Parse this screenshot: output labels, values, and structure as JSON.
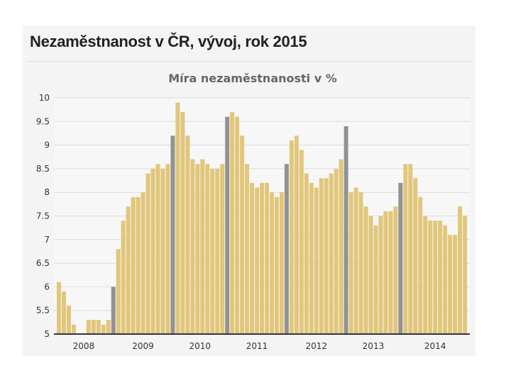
{
  "header": {
    "title": "Nezaměstnanost v ČR, vývoj, rok 2015"
  },
  "colors": {
    "bar": "#e1c67b",
    "highlight": "#929292",
    "grid": "#dadada"
  },
  "chart_data": {
    "type": "bar",
    "title": "Míra nezaměstnanosti v %",
    "xlabel": "",
    "ylabel": "",
    "ylim": [
      5,
      10
    ],
    "y_ticks": [
      "5",
      "5.5",
      "6",
      "6.5",
      "7",
      "7.5",
      "8",
      "8.5",
      "9",
      "9.5",
      "10"
    ],
    "x_tick_labels": [
      "2008",
      "2009",
      "2010",
      "2011",
      "2012",
      "2013",
      "2014"
    ],
    "grid": true,
    "legend": "none",
    "values": [
      6.1,
      5.9,
      5.6,
      5.2,
      5.0,
      5.0,
      5.3,
      5.3,
      5.3,
      5.2,
      5.3,
      6.0,
      6.8,
      7.4,
      7.7,
      7.9,
      7.9,
      8.0,
      8.4,
      8.5,
      8.6,
      8.5,
      8.6,
      9.2,
      9.9,
      9.7,
      9.2,
      8.7,
      8.6,
      8.7,
      8.6,
      8.5,
      8.5,
      8.6,
      9.6,
      9.7,
      9.6,
      9.2,
      8.6,
      8.2,
      8.1,
      8.2,
      8.2,
      8.0,
      7.9,
      8.0,
      8.6,
      9.1,
      9.2,
      8.9,
      8.4,
      8.2,
      8.1,
      8.3,
      8.3,
      8.4,
      8.5,
      8.7,
      9.4,
      8.0,
      8.1,
      8.0,
      7.7,
      7.5,
      7.3,
      7.5,
      7.6,
      7.6,
      7.7,
      8.2,
      8.6,
      8.6,
      8.3,
      7.9,
      7.5,
      7.4,
      7.4,
      7.4,
      7.3,
      7.1,
      7.1,
      7.7,
      7.5
    ],
    "highlighted_indices": [
      11,
      23,
      34,
      46,
      58,
      69
    ]
  }
}
